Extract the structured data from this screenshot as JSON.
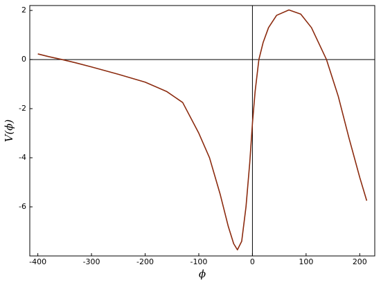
{
  "chart_data": {
    "type": "line",
    "xlabel": "ϕ",
    "ylabel": "V(ϕ)",
    "x": [
      -400,
      -380,
      -355,
      -330,
      -300,
      -250,
      -200,
      -160,
      -130,
      -100,
      -80,
      -60,
      -45,
      -35,
      -28,
      -20,
      -12,
      -5,
      0,
      5,
      12,
      20,
      30,
      45,
      68,
      90,
      110,
      138,
      160,
      180,
      200,
      213
    ],
    "series": [
      {
        "name": "V(ϕ)",
        "color": "#8b2a0e",
        "values": [
          0.23,
          0.12,
          0,
          -0.13,
          -0.3,
          -0.6,
          -0.92,
          -1.3,
          -1.75,
          -3.0,
          -4.0,
          -5.5,
          -6.8,
          -7.5,
          -7.75,
          -7.4,
          -6.0,
          -4.2,
          -2.6,
          -1.3,
          0,
          0.7,
          1.3,
          1.8,
          2.02,
          1.85,
          1.3,
          0,
          -1.5,
          -3.2,
          -4.8,
          -5.75
        ]
      }
    ],
    "xlim": [
      -415,
      228
    ],
    "ylim": [
      -8,
      2.2
    ],
    "xticks": [
      -400,
      -300,
      -200,
      -100,
      0,
      100,
      200
    ],
    "yticks": [
      -6,
      -4,
      -2,
      0,
      2
    ]
  }
}
